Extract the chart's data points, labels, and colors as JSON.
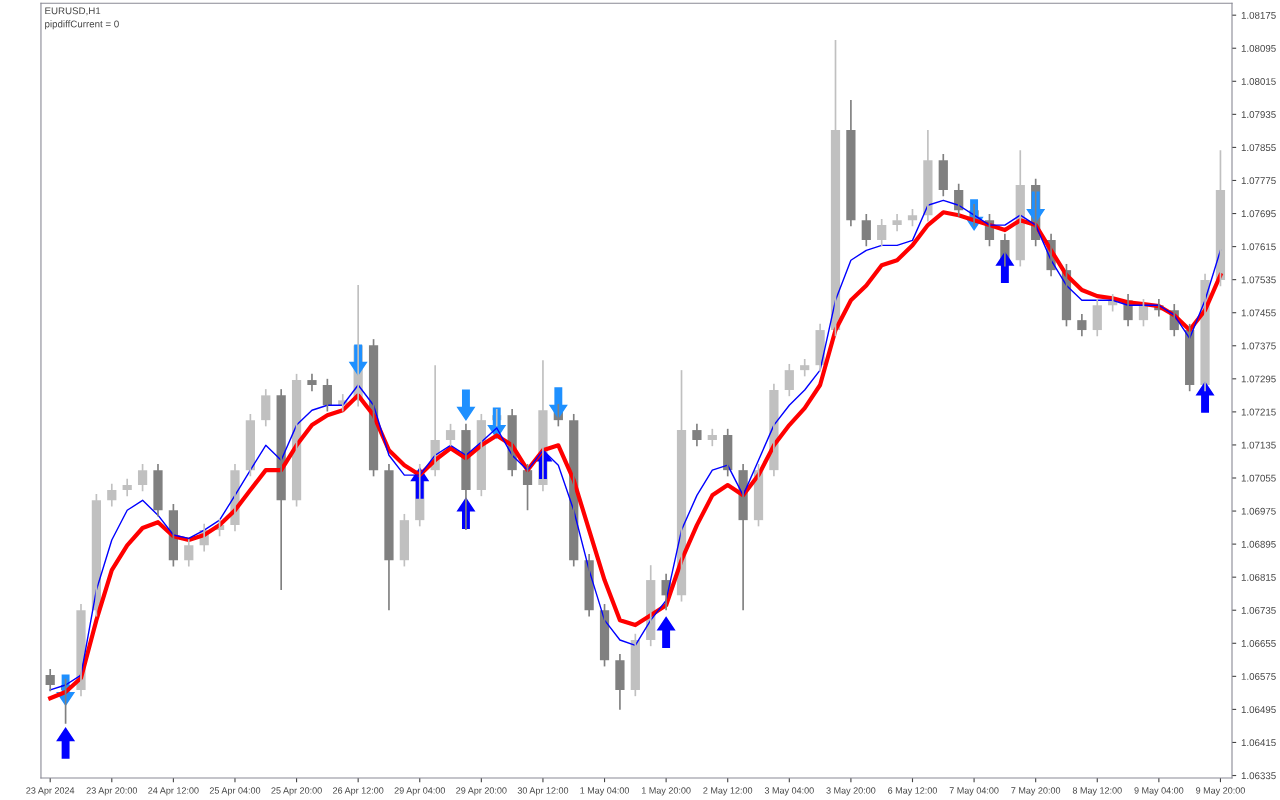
{
  "chart_data": {
    "type": "candlestick",
    "title": "EURUSD,H1",
    "annotations": [
      "pipdiffCurrent = 0"
    ],
    "categories": [
      "23 Apr 2024",
      null,
      null,
      null,
      "23 Apr 20:00",
      null,
      null,
      null,
      "24 Apr 12:00",
      null,
      null,
      null,
      "25 Apr 04:00",
      null,
      null,
      null,
      "25 Apr 20:00",
      null,
      null,
      null,
      "26 Apr 12:00",
      null,
      null,
      null,
      "29 Apr 04:00",
      null,
      null,
      null,
      "29 Apr 20:00",
      null,
      null,
      null,
      "30 Apr 12:00",
      null,
      null,
      null,
      "1 May 04:00",
      null,
      null,
      null,
      "1 May 20:00",
      null,
      null,
      null,
      "2 May 12:00",
      null,
      null,
      null,
      "3 May 04:00",
      null,
      null,
      null,
      "3 May 20:00",
      null,
      null,
      null,
      "6 May 12:00",
      null,
      null,
      null,
      "7 May 04:00",
      null,
      null,
      null,
      "7 May 20:00",
      null,
      null,
      null,
      "8 May 12:00",
      null,
      null,
      null,
      "9 May 04:00",
      null,
      null,
      null,
      "9 May 20:00"
    ],
    "ohlc": [
      [
        1.06578,
        1.06593,
        1.06539,
        1.06554
      ],
      [
        1.06554,
        1.06569,
        1.0646,
        1.06542
      ],
      [
        1.06542,
        1.0675,
        1.06527,
        1.06735
      ],
      [
        1.06735,
        1.07016,
        1.0672,
        1.07001
      ],
      [
        1.07001,
        1.07041,
        1.06986,
        1.07026
      ],
      [
        1.07026,
        1.07053,
        1.07011,
        1.07038
      ],
      [
        1.07038,
        1.07089,
        1.07023,
        1.07074
      ],
      [
        1.07074,
        1.07089,
        1.06962,
        1.06977
      ],
      [
        1.06977,
        1.06992,
        1.06841,
        1.06856
      ],
      [
        1.06856,
        1.06907,
        1.06841,
        1.06892
      ],
      [
        1.06892,
        1.06944,
        1.06877,
        1.06929
      ],
      [
        1.06929,
        1.06956,
        1.06914,
        1.06941
      ],
      [
        1.06941,
        1.07089,
        1.06926,
        1.07074
      ],
      [
        1.07074,
        1.0721,
        1.07059,
        1.07195
      ],
      [
        1.07195,
        1.0727,
        1.0718,
        1.07255
      ],
      [
        1.07255,
        1.0727,
        1.06784,
        1.07001
      ],
      [
        1.07001,
        1.07307,
        1.06986,
        1.07292
      ],
      [
        1.07292,
        1.07307,
        1.07265,
        1.0728
      ],
      [
        1.0728,
        1.07295,
        1.07216,
        1.07231
      ],
      [
        1.07231,
        1.07258,
        1.07216,
        1.07243
      ],
      [
        1.07243,
        1.07522,
        1.07228,
        1.07376
      ],
      [
        1.07376,
        1.07391,
        1.07059,
        1.07074
      ],
      [
        1.07074,
        1.07089,
        1.06735,
        1.06856
      ],
      [
        1.06856,
        1.06968,
        1.06841,
        1.06953
      ],
      [
        1.06953,
        1.07089,
        1.06938,
        1.07074
      ],
      [
        1.07074,
        1.07328,
        1.07059,
        1.07147
      ],
      [
        1.07147,
        1.07186,
        1.07132,
        1.07171
      ],
      [
        1.07171,
        1.07186,
        1.06929,
        1.07026
      ],
      [
        1.07026,
        1.0721,
        1.07011,
        1.07195
      ],
      [
        1.07195,
        1.07222,
        1.0718,
        1.07207
      ],
      [
        1.07207,
        1.07222,
        1.07059,
        1.07074
      ],
      [
        1.07074,
        1.07089,
        1.06977,
        1.07038
      ],
      [
        1.07038,
        1.0734,
        1.07023,
        1.07219
      ],
      [
        1.07219,
        1.07234,
        1.0718,
        1.07195
      ],
      [
        1.07195,
        1.0721,
        1.06841,
        1.06856
      ],
      [
        1.06856,
        1.06871,
        1.0672,
        1.06735
      ],
      [
        1.06735,
        1.0675,
        1.06599,
        1.06614
      ],
      [
        1.06614,
        1.06629,
        1.06494,
        1.06542
      ],
      [
        1.06542,
        1.06678,
        1.06527,
        1.06663
      ],
      [
        1.06663,
        1.06844,
        1.06648,
        1.06808
      ],
      [
        1.06808,
        1.06823,
        1.06735,
        1.06771
      ],
      [
        1.06771,
        1.07316,
        1.06756,
        1.07171
      ],
      [
        1.07171,
        1.07186,
        1.07132,
        1.07147
      ],
      [
        1.07147,
        1.07174,
        1.07132,
        1.07159
      ],
      [
        1.07159,
        1.07174,
        1.07059,
        1.07074
      ],
      [
        1.07074,
        1.07089,
        1.06735,
        1.06953
      ],
      [
        1.06953,
        1.07089,
        1.06938,
        1.07074
      ],
      [
        1.07074,
        1.07283,
        1.07059,
        1.07268
      ],
      [
        1.07268,
        1.07331,
        1.07253,
        1.07316
      ],
      [
        1.07316,
        1.07343,
        1.07301,
        1.07328
      ],
      [
        1.07328,
        1.07428,
        1.07313,
        1.07413
      ],
      [
        1.07413,
        1.08115,
        1.07398,
        1.07897
      ],
      [
        1.07897,
        1.0797,
        1.07664,
        1.07679
      ],
      [
        1.07679,
        1.07694,
        1.07616,
        1.07631
      ],
      [
        1.07631,
        1.07682,
        1.07616,
        1.07667
      ],
      [
        1.07667,
        1.07694,
        1.07652,
        1.07679
      ],
      [
        1.07679,
        1.07706,
        1.07664,
        1.07691
      ],
      [
        1.07691,
        1.07897,
        1.07676,
        1.07824
      ],
      [
        1.07824,
        1.07839,
        1.07737,
        1.07752
      ],
      [
        1.07752,
        1.07767,
        1.07688,
        1.07703
      ],
      [
        1.07703,
        1.07718,
        1.07664,
        1.07679
      ],
      [
        1.07679,
        1.07694,
        1.07616,
        1.07631
      ],
      [
        1.07631,
        1.07646,
        1.07567,
        1.07582
      ],
      [
        1.07582,
        1.07848,
        1.07567,
        1.07764
      ],
      [
        1.07764,
        1.07779,
        1.07616,
        1.07631
      ],
      [
        1.07631,
        1.07646,
        1.07543,
        1.07558
      ],
      [
        1.07558,
        1.07573,
        1.07422,
        1.07437
      ],
      [
        1.07437,
        1.07452,
        1.07398,
        1.07413
      ],
      [
        1.07413,
        1.07488,
        1.07398,
        1.07473
      ],
      [
        1.07473,
        1.075,
        1.07458,
        1.07485
      ],
      [
        1.07485,
        1.075,
        1.07422,
        1.07437
      ],
      [
        1.07437,
        1.07488,
        1.07422,
        1.07473
      ],
      [
        1.07473,
        1.07488,
        1.07446,
        1.07461
      ],
      [
        1.07461,
        1.07476,
        1.07398,
        1.07413
      ],
      [
        1.07413,
        1.07428,
        1.07265,
        1.0728
      ],
      [
        1.0728,
        1.07549,
        1.07265,
        1.07534
      ],
      [
        1.07534,
        1.07848,
        1.07519,
        1.07752
      ]
    ],
    "colors": [
      "#808080",
      "#808080",
      "#c0c0c0",
      "#c0c0c0",
      "#c0c0c0",
      "#c0c0c0",
      "#c0c0c0",
      "#808080",
      "#808080",
      "#c0c0c0",
      "#c0c0c0",
      "#c0c0c0",
      "#c0c0c0",
      "#c0c0c0",
      "#c0c0c0",
      "#808080",
      "#c0c0c0",
      "#808080",
      "#808080",
      "#c0c0c0",
      "#c0c0c0",
      "#808080",
      "#808080",
      "#c0c0c0",
      "#c0c0c0",
      "#c0c0c0",
      "#c0c0c0",
      "#808080",
      "#c0c0c0",
      "#c0c0c0",
      "#808080",
      "#808080",
      "#c0c0c0",
      "#808080",
      "#808080",
      "#808080",
      "#808080",
      "#808080",
      "#c0c0c0",
      "#c0c0c0",
      "#808080",
      "#c0c0c0",
      "#808080",
      "#c0c0c0",
      "#808080",
      "#808080",
      "#c0c0c0",
      "#c0c0c0",
      "#c0c0c0",
      "#c0c0c0",
      "#c0c0c0",
      "#c0c0c0",
      "#808080",
      "#808080",
      "#c0c0c0",
      "#c0c0c0",
      "#c0c0c0",
      "#c0c0c0",
      "#808080",
      "#808080",
      "#808080",
      "#808080",
      "#808080",
      "#c0c0c0",
      "#808080",
      "#808080",
      "#808080",
      "#808080",
      "#c0c0c0",
      "#c0c0c0",
      "#808080",
      "#c0c0c0",
      "#808080",
      "#808080",
      "#808080",
      "#c0c0c0",
      "#c0c0c0"
    ],
    "series": [
      {
        "type": "line",
        "color": "#ff0000",
        "values": [
          1.06522,
          1.06537,
          1.06571,
          1.06711,
          1.06832,
          1.06892,
          1.06934,
          1.06948,
          1.06914,
          1.06905,
          1.06917,
          1.06941,
          1.06977,
          1.07026,
          1.07074,
          1.07074,
          1.07134,
          1.07183,
          1.07207,
          1.07219,
          1.07255,
          1.07207,
          1.07122,
          1.07086,
          1.07062,
          1.07098,
          1.07127,
          1.07103,
          1.07134,
          1.07158,
          1.07134,
          1.07074,
          1.07122,
          1.07134,
          1.0705,
          1.06929,
          1.06808,
          1.06711,
          1.06699,
          1.06723,
          1.06747,
          1.06856,
          1.06941,
          1.07013,
          1.07038,
          1.07013,
          1.07062,
          1.07134,
          1.07183,
          1.07224,
          1.0728,
          1.07413,
          1.07485,
          1.07521,
          1.0757,
          1.07582,
          1.07618,
          1.07667,
          1.07698,
          1.07691,
          1.07679,
          1.07667,
          1.07655,
          1.07679,
          1.07667,
          1.07606,
          1.07546,
          1.0751,
          1.07495,
          1.0749,
          1.0748,
          1.07476,
          1.07471,
          1.07449,
          1.07413,
          1.07461,
          1.07546
        ]
      },
      {
        "type": "line",
        "color": "#0000ff",
        "values": [
          1.06542,
          1.06554,
          1.06578,
          1.06784,
          1.06905,
          1.06977,
          1.07001,
          1.06965,
          1.06917,
          1.06909,
          1.06929,
          1.06953,
          1.07013,
          1.07074,
          1.07134,
          1.07098,
          1.07183,
          1.07219,
          1.07231,
          1.07231,
          1.0728,
          1.07231,
          1.0711,
          1.07062,
          1.07062,
          1.0711,
          1.07134,
          1.0711,
          1.07142,
          1.07176,
          1.0711,
          1.07074,
          1.07122,
          1.07086,
          1.06977,
          1.06832,
          1.06711,
          1.06663,
          1.0665,
          1.06711,
          1.06759,
          1.06929,
          1.07013,
          1.07074,
          1.07086,
          1.07013,
          1.07098,
          1.07183,
          1.07231,
          1.07268,
          1.07316,
          1.07485,
          1.07582,
          1.07606,
          1.07618,
          1.07618,
          1.0763,
          1.07715,
          1.07727,
          1.07715,
          1.07691,
          1.07667,
          1.07667,
          1.07691,
          1.07667,
          1.07582,
          1.07521,
          1.07485,
          1.07485,
          1.07485,
          1.07473,
          1.07473,
          1.07473,
          1.07449,
          1.07393,
          1.07485,
          1.07606
        ]
      },
      {
        "type": "scatter",
        "color": "#1e90ff",
        "marker": "triangle",
        "values": [
          null,
          1.06541,
          null,
          null,
          null,
          null,
          null,
          null,
          null,
          null,
          null,
          null,
          null,
          null,
          null,
          null,
          null,
          null,
          null,
          null,
          1.0734,
          null,
          null,
          null,
          null,
          null,
          null,
          1.07231,
          null,
          1.07187,
          null,
          null,
          null,
          1.07236,
          null,
          null,
          null,
          null,
          null,
          null,
          null,
          null,
          null,
          null,
          null,
          null,
          null,
          null,
          null,
          null,
          null,
          null,
          null,
          null,
          null,
          null,
          null,
          null,
          null,
          null,
          1.07691,
          null,
          null,
          null,
          1.0771,
          null,
          null,
          null,
          null,
          null,
          null,
          null,
          null,
          null,
          null,
          null,
          null
        ]
      },
      {
        "type": "scatter",
        "color": "#0000ff",
        "marker": "triangle",
        "values": [
          null,
          1.06414,
          null,
          null,
          null,
          null,
          null,
          null,
          null,
          null,
          null,
          null,
          null,
          null,
          null,
          null,
          null,
          null,
          null,
          null,
          null,
          null,
          null,
          null,
          1.07043,
          null,
          null,
          1.0697,
          null,
          null,
          null,
          null,
          1.07091,
          null,
          null,
          null,
          null,
          null,
          null,
          null,
          1.06682,
          null,
          null,
          null,
          null,
          null,
          null,
          null,
          null,
          null,
          null,
          null,
          null,
          null,
          null,
          null,
          null,
          null,
          null,
          null,
          null,
          null,
          1.07565,
          null,
          null,
          null,
          null,
          null,
          null,
          null,
          null,
          null,
          null,
          null,
          null,
          1.07251,
          null
        ]
      }
    ],
    "ylim": [
      1.06329,
      1.08204
    ],
    "yticks": [
      1.06335,
      1.06415,
      1.06495,
      1.06575,
      1.06655,
      1.06735,
      1.06815,
      1.06895,
      1.06975,
      1.07055,
      1.07135,
      1.07215,
      1.07295,
      1.07375,
      1.07455,
      1.07535,
      1.07615,
      1.07695,
      1.07775,
      1.07855,
      1.07935,
      1.08015,
      1.08095,
      1.08175
    ],
    "grid": false,
    "legend": false
  }
}
